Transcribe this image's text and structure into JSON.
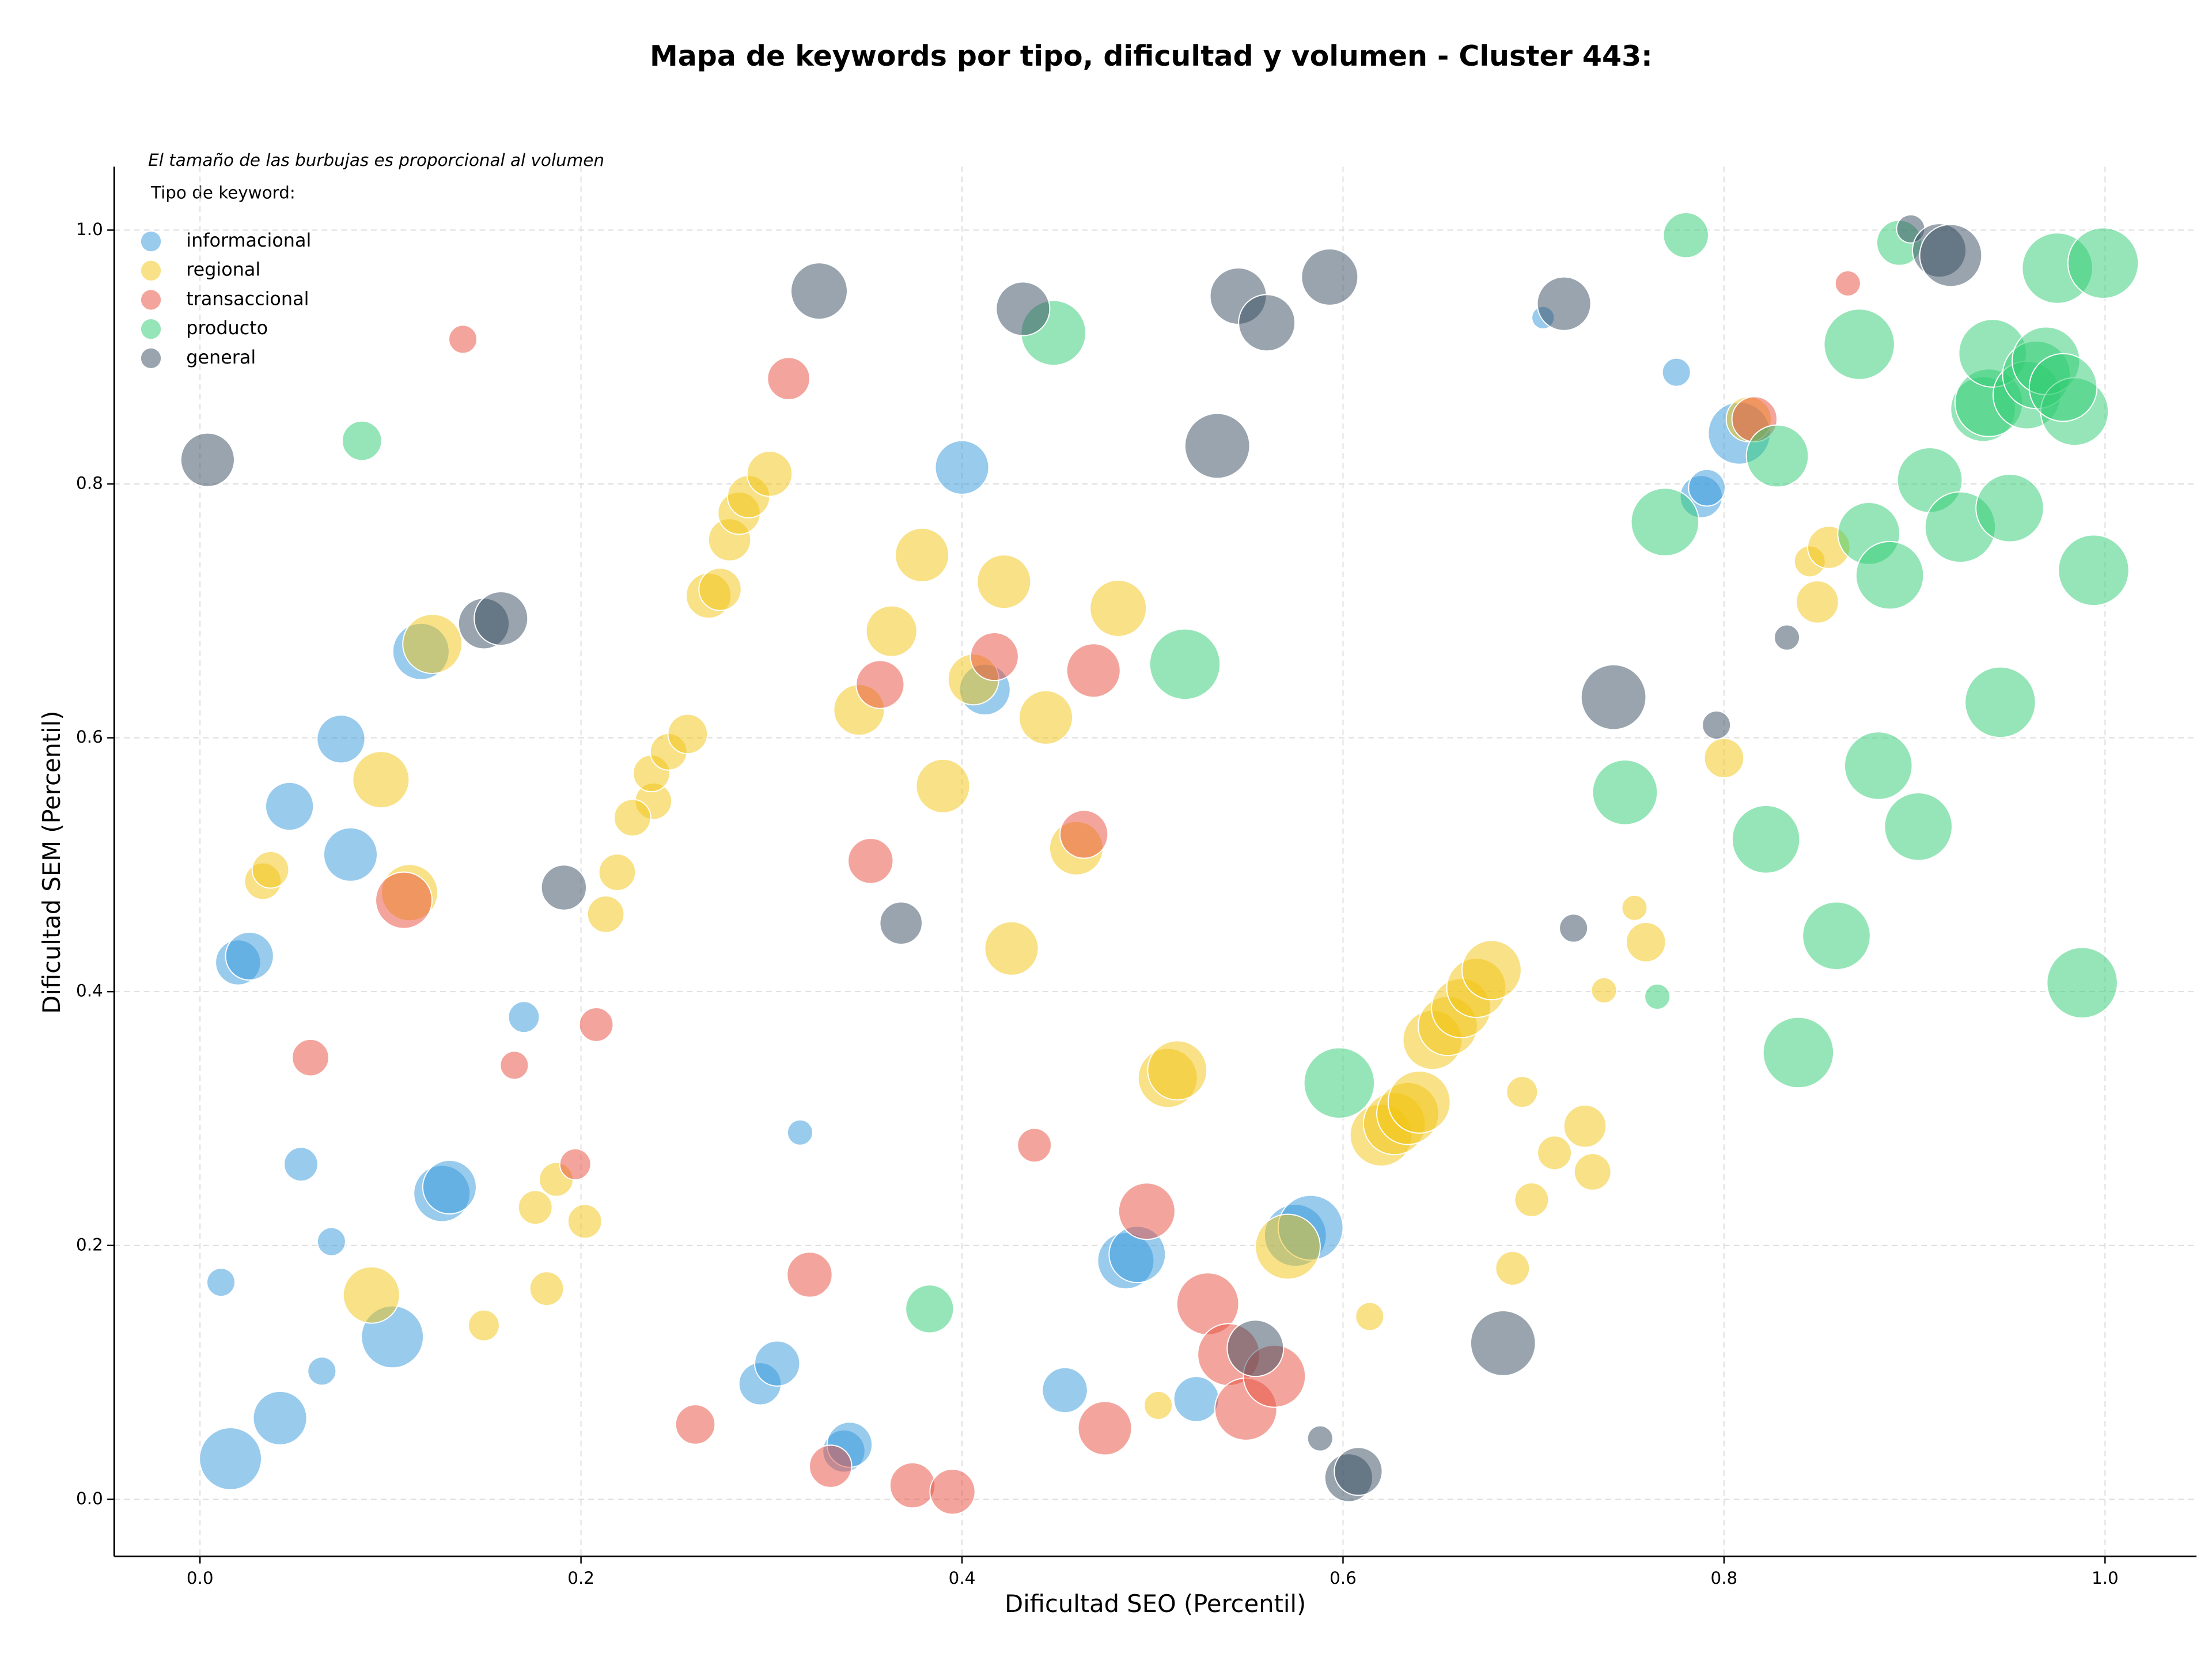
{
  "chart_data": {
    "type": "scatter",
    "title": "Mapa de keywords por tipo, dificultad y volumen - Cluster 443:",
    "subtitle": "El tamaño de las burbujas es proporcional al volumen",
    "legend_title": "Tipo de keyword:",
    "xlabel": "Dificultad SEO (Percentil)",
    "ylabel": "Dificultad SEM (Percentil)",
    "xlim": [
      -0.045,
      1.048
    ],
    "ylim": [
      -0.045,
      1.05
    ],
    "xticks": [
      {
        "value": 0,
        "label": "0.0"
      },
      0.2,
      0.4,
      0.6,
      0.8,
      {
        "value": 1,
        "label": "1.0"
      }
    ],
    "yticks": [
      {
        "value": 0,
        "label": "0.0"
      },
      0.2,
      0.4,
      0.6,
      0.8,
      {
        "value": 1,
        "label": "1.0"
      }
    ],
    "grid": true,
    "legend": "upper left",
    "opacity": 0.5,
    "series": [
      {
        "name": "informacional",
        "color": "#3498db",
        "x": [
          0.016,
          0.042,
          0.064,
          0.101,
          0.011,
          0.069,
          0.053,
          0.127,
          0.131,
          0.17,
          0.02,
          0.026,
          0.047,
          0.079,
          0.074,
          0.116,
          0.315,
          0.294,
          0.303,
          0.338,
          0.341,
          0.454,
          0.523,
          0.486,
          0.492,
          0.575,
          0.583,
          0.4,
          0.412,
          0.705,
          0.775,
          0.788,
          0.791,
          0.808
        ],
        "values": [
          0.032,
          0.064,
          0.101,
          0.128,
          0.171,
          0.203,
          0.264,
          0.241,
          0.246,
          0.38,
          0.423,
          0.428,
          0.546,
          0.508,
          0.599,
          0.668,
          0.289,
          0.091,
          0.107,
          0.038,
          0.043,
          0.086,
          0.079,
          0.188,
          0.193,
          0.208,
          0.214,
          0.813,
          0.638,
          0.931,
          0.888,
          0.79,
          0.797,
          0.84
        ],
        "sizes": [
          22,
          19,
          10,
          22,
          10,
          10,
          12,
          20,
          19,
          11,
          16,
          17,
          17,
          19,
          17,
          20,
          9,
          15,
          16,
          15,
          16,
          16,
          16,
          20,
          20,
          22,
          23,
          19,
          18,
          8,
          10,
          15,
          13,
          22
        ]
      },
      {
        "name": "regional",
        "color": "#f1c40f",
        "x": [
          0.09,
          0.149,
          0.182,
          0.176,
          0.187,
          0.202,
          0.033,
          0.037,
          0.095,
          0.11,
          0.122,
          0.213,
          0.219,
          0.238,
          0.237,
          0.227,
          0.246,
          0.256,
          0.267,
          0.273,
          0.278,
          0.283,
          0.288,
          0.299,
          0.346,
          0.363,
          0.379,
          0.39,
          0.406,
          0.422,
          0.426,
          0.444,
          0.46,
          0.482,
          0.503,
          0.508,
          0.513,
          0.571,
          0.614,
          0.62,
          0.627,
          0.634,
          0.64,
          0.647,
          0.655,
          0.662,
          0.67,
          0.678,
          0.689,
          0.694,
          0.699,
          0.711,
          0.727,
          0.731,
          0.737,
          0.753,
          0.759,
          0.8,
          0.845,
          0.849,
          0.855,
          0.813
        ],
        "values": [
          0.161,
          0.137,
          0.166,
          0.23,
          0.252,
          0.219,
          0.487,
          0.496,
          0.567,
          0.478,
          0.674,
          0.461,
          0.494,
          0.55,
          0.572,
          0.537,
          0.589,
          0.603,
          0.712,
          0.717,
          0.756,
          0.777,
          0.79,
          0.808,
          0.622,
          0.684,
          0.744,
          0.562,
          0.646,
          0.723,
          0.434,
          0.616,
          0.513,
          0.702,
          0.074,
          0.332,
          0.338,
          0.199,
          0.144,
          0.287,
          0.296,
          0.304,
          0.313,
          0.362,
          0.373,
          0.387,
          0.403,
          0.417,
          0.182,
          0.321,
          0.236,
          0.273,
          0.294,
          0.258,
          0.401,
          0.466,
          0.439,
          0.584,
          0.739,
          0.707,
          0.75,
          0.851
        ],
        "sizes": [
          20,
          11,
          12,
          12,
          12,
          12,
          13,
          13,
          20,
          20,
          21,
          13,
          13,
          13,
          13,
          13,
          13,
          14,
          16,
          15,
          15,
          15,
          15,
          16,
          18,
          18,
          19,
          19,
          18,
          19,
          19,
          19,
          19,
          20,
          10,
          21,
          21,
          23,
          10,
          22,
          22,
          22,
          22,
          21,
          21,
          21,
          21,
          21,
          12,
          11,
          12,
          12,
          15,
          13,
          9,
          9,
          14,
          14,
          11,
          15,
          15,
          16
        ]
      },
      {
        "name": "transaccional",
        "color": "#e74c3c",
        "x": [
          0.058,
          0.107,
          0.138,
          0.165,
          0.197,
          0.208,
          0.26,
          0.309,
          0.32,
          0.331,
          0.352,
          0.357,
          0.374,
          0.395,
          0.417,
          0.438,
          0.464,
          0.469,
          0.475,
          0.497,
          0.529,
          0.54,
          0.549,
          0.564,
          0.816,
          0.865
        ],
        "values": [
          0.348,
          0.472,
          0.914,
          0.342,
          0.264,
          0.374,
          0.059,
          0.883,
          0.177,
          0.026,
          0.503,
          0.642,
          0.011,
          0.006,
          0.664,
          0.279,
          0.524,
          0.653,
          0.056,
          0.227,
          0.154,
          0.114,
          0.071,
          0.097,
          0.851,
          0.958
        ],
        "sizes": [
          13,
          20,
          10,
          10,
          11,
          12,
          14,
          15,
          16,
          15,
          16,
          17,
          16,
          16,
          17,
          12,
          17,
          19,
          19,
          20,
          22,
          22,
          22,
          22,
          16,
          9
        ]
      },
      {
        "name": "producto",
        "color": "#2ecc71",
        "x": [
          0.085,
          0.383,
          0.448,
          0.517,
          0.598,
          0.748,
          0.765,
          0.769,
          0.78,
          0.822,
          0.828,
          0.839,
          0.859,
          0.871,
          0.876,
          0.881,
          0.887,
          0.892,
          0.902,
          0.908,
          0.924,
          0.936,
          0.939,
          0.941,
          0.945,
          0.95,
          0.959,
          0.964,
          0.969,
          0.975,
          0.984,
          0.988,
          0.994,
          0.999,
          0.978
        ],
        "values": [
          0.834,
          0.15,
          0.919,
          0.658,
          0.328,
          0.557,
          0.396,
          0.77,
          0.996,
          0.52,
          0.822,
          0.352,
          0.444,
          0.91,
          0.761,
          0.578,
          0.728,
          0.99,
          0.53,
          0.803,
          0.766,
          0.859,
          0.864,
          0.903,
          0.628,
          0.781,
          0.87,
          0.886,
          0.897,
          0.97,
          0.857,
          0.407,
          0.732,
          0.974,
          0.876
        ],
        "sizes": [
          14,
          17,
          23,
          25,
          25,
          23,
          9,
          24,
          16,
          24,
          22,
          25,
          24,
          25,
          22,
          24,
          24,
          16,
          24,
          23,
          25,
          23,
          24,
          24,
          25,
          24,
          24,
          24,
          24,
          25,
          24,
          25,
          25,
          25,
          24
        ]
      },
      {
        "name": "general",
        "color": "#34495e",
        "x": [
          0.004,
          0.149,
          0.158,
          0.191,
          0.325,
          0.368,
          0.432,
          0.534,
          0.545,
          0.554,
          0.56,
          0.588,
          0.593,
          0.603,
          0.608,
          0.684,
          0.716,
          0.721,
          0.742,
          0.796,
          0.833,
          0.898,
          0.913,
          0.919
        ],
        "values": [
          0.819,
          0.69,
          0.694,
          0.482,
          0.952,
          0.454,
          0.938,
          0.83,
          0.948,
          0.119,
          0.927,
          0.048,
          0.963,
          0.017,
          0.022,
          0.123,
          0.942,
          0.45,
          0.632,
          0.61,
          0.679,
          1.001,
          0.984,
          0.98
        ],
        "sizes": [
          19,
          18,
          19,
          16,
          20,
          15,
          19,
          23,
          20,
          20,
          20,
          9,
          20,
          17,
          17,
          23,
          19,
          10,
          23,
          10,
          9,
          10,
          19,
          22
        ]
      }
    ]
  }
}
